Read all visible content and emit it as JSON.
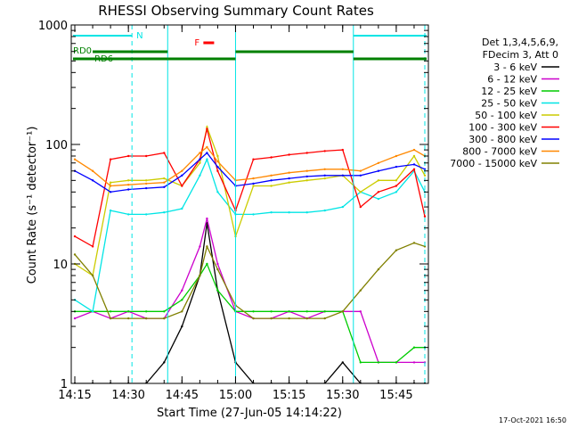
{
  "chart_data": {
    "type": "line",
    "title": "RHESSI Observing Summary Count Rates",
    "xlabel": "Start Time (27-Jun-05 14:14:22)",
    "ylabel": "Count Rate (s⁻¹ detector⁻¹)",
    "yscale": "log",
    "ylim": [
      1,
      1000
    ],
    "xlim": [
      "14:14",
      "15:54"
    ],
    "x_ticks": [
      "14:15",
      "14:30",
      "14:45",
      "15:00",
      "15:15",
      "15:30",
      "15:45"
    ],
    "y_ticks": [
      "1",
      "10",
      "100",
      "1000"
    ],
    "legend_header": [
      "Det 1,3,4,5,6,9,",
      "FDecim 3, Att 0"
    ],
    "x": [
      "14:15",
      "14:20",
      "14:25",
      "14:30",
      "14:35",
      "14:40",
      "14:45",
      "14:50",
      "14:52",
      "14:55",
      "15:00",
      "15:05",
      "15:10",
      "15:15",
      "15:20",
      "15:25",
      "15:30",
      "15:35",
      "15:40",
      "15:45",
      "15:50",
      "15:53"
    ],
    "series": [
      {
        "name": "3 - 6 keV",
        "color": "#000000",
        "values": [
          1,
          1,
          1,
          1,
          1,
          1.5,
          3,
          8,
          22,
          6,
          1.5,
          1,
          1,
          1,
          1,
          1,
          1.5,
          1,
          1,
          1,
          1,
          1
        ]
      },
      {
        "name": "6 - 12 keV",
        "color": "#cc00cc",
        "values": [
          3.5,
          4,
          3.5,
          4,
          3.5,
          3.5,
          6,
          14,
          24,
          10,
          4,
          3.5,
          3.5,
          4,
          3.5,
          4,
          4,
          4,
          1.5,
          1.5,
          1.5,
          1.5
        ]
      },
      {
        "name": "12 - 25 keV",
        "color": "#00cc00",
        "values": [
          4,
          4,
          4,
          4,
          4,
          4,
          5,
          8,
          10,
          6,
          4,
          4,
          4,
          4,
          4,
          4,
          4,
          1.5,
          1.5,
          1.5,
          2,
          2
        ]
      },
      {
        "name": "25 - 50 keV",
        "color": "#00e5e5",
        "values": [
          5,
          4,
          28,
          26,
          26,
          27,
          29,
          55,
          75,
          40,
          26,
          26,
          27,
          27,
          27,
          28,
          30,
          40,
          35,
          40,
          60,
          40
        ]
      },
      {
        "name": "50 - 100 keV",
        "color": "#cccc00",
        "values": [
          10,
          8,
          48,
          50,
          50,
          52,
          45,
          70,
          140,
          80,
          17,
          45,
          45,
          48,
          50,
          52,
          55,
          40,
          50,
          50,
          80,
          55
        ]
      },
      {
        "name": "100 - 300 keV",
        "color": "#ff0000",
        "values": [
          17,
          14,
          75,
          80,
          80,
          85,
          45,
          75,
          135,
          60,
          28,
          75,
          78,
          82,
          85,
          88,
          90,
          30,
          40,
          45,
          62,
          25
        ]
      },
      {
        "name": "300 - 800 keV",
        "color": "#0000ff",
        "values": [
          60,
          50,
          40,
          42,
          43,
          44,
          55,
          75,
          85,
          65,
          45,
          47,
          50,
          52,
          54,
          55,
          55,
          55,
          60,
          65,
          68,
          62
        ]
      },
      {
        "name": "800 - 7000 keV",
        "color": "#ff8800",
        "values": [
          75,
          60,
          45,
          46,
          47,
          48,
          60,
          85,
          95,
          72,
          50,
          52,
          55,
          58,
          60,
          62,
          62,
          60,
          70,
          80,
          90,
          80
        ]
      },
      {
        "name": "7000 - 15000 keV",
        "color": "#808000",
        "values": [
          12,
          8,
          3.5,
          3.5,
          3.5,
          3.5,
          4,
          8,
          14,
          9,
          4.5,
          3.5,
          3.5,
          3.5,
          3.5,
          3.5,
          4,
          6,
          9,
          13,
          15,
          14
        ]
      }
    ],
    "annotations": {
      "rd0_label": "RD0",
      "rd6_label": "RD6",
      "n_label": "N",
      "f_label": "F"
    },
    "grid": false,
    "legend_position": "right"
  },
  "footer": {
    "timestamp": "17-Oct-2021 16:50"
  }
}
